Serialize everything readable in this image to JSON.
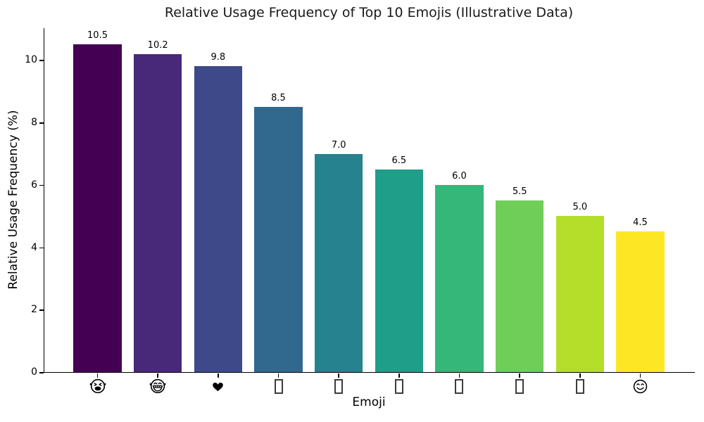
{
  "chart_data": {
    "type": "bar",
    "title": "Relative Usage Frequency of Top 10 Emojis (Illustrative Data)",
    "xlabel": "Emoji",
    "ylabel": "Relative Usage Frequency (%)",
    "ylim": [
      0,
      11.025
    ],
    "xlim": [
      -0.893,
      9.893
    ],
    "yticks": [
      0,
      2,
      4,
      6,
      8,
      10
    ],
    "grid": false,
    "legend": "none",
    "background": "#ffffff",
    "categories": [
      "😂",
      "🤣",
      "❤️",
      "",
      "",
      "",
      "",
      "",
      "",
      "😊"
    ],
    "tick_glyphs": [
      "crying-laughing-face",
      "grinning-face",
      "heart",
      "missing-glyph",
      "missing-glyph",
      "missing-glyph",
      "missing-glyph",
      "missing-glyph",
      "missing-glyph",
      "smiling-face"
    ],
    "values": [
      10.5,
      10.2,
      9.8,
      8.5,
      7.0,
      6.5,
      6.0,
      5.5,
      5.0,
      4.5
    ],
    "value_labels": [
      "10.5",
      "10.2",
      "9.8",
      "8.5",
      "7.0",
      "6.5",
      "6.0",
      "5.5",
      "5.0",
      "4.5"
    ],
    "bar_colors": [
      "#440154",
      "#482878",
      "#3e4989",
      "#31688e",
      "#26828e",
      "#1f9e89",
      "#35b779",
      "#6ece58",
      "#b5de2b",
      "#fde725"
    ],
    "axis_color": "#000000",
    "title_color": "#1a1a1a"
  }
}
